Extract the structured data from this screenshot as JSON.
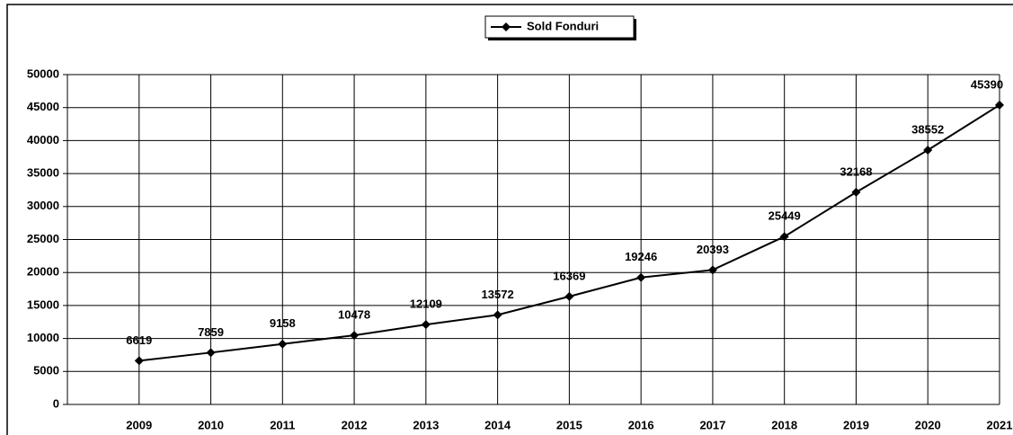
{
  "chart_data": {
    "type": "line",
    "categories": [
      "2009",
      "2010",
      "2011",
      "2012",
      "2013",
      "2014",
      "2015",
      "2016",
      "2017",
      "2018",
      "2019",
      "2020",
      "2021"
    ],
    "series": [
      {
        "name": "Sold Fonduri",
        "color": "#000000",
        "values": [
          6619,
          7859,
          9158,
          10478,
          12109,
          13572,
          16369,
          19246,
          20393,
          25449,
          32168,
          38552,
          45390
        ]
      }
    ],
    "ylim": [
      0,
      50000
    ],
    "yticks": [
      0,
      5000,
      10000,
      15000,
      20000,
      25000,
      30000,
      35000,
      40000,
      45000,
      50000
    ],
    "grid": true,
    "legend": "top"
  }
}
